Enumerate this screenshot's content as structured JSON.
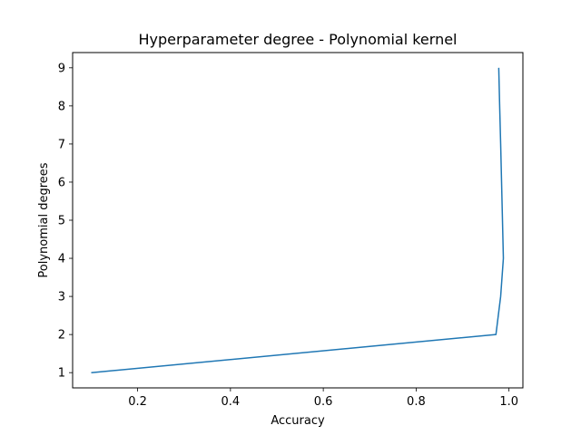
{
  "chart_data": {
    "type": "line",
    "title": "Hyperparameter degree - Polynomial kernel",
    "xlabel": "Accuracy",
    "ylabel": "Polynomial degrees",
    "xlim": [
      0.06,
      1.03
    ],
    "ylim": [
      0.6,
      9.4
    ],
    "xticks": [
      0.2,
      0.4,
      0.6,
      0.8,
      1.0
    ],
    "xtick_labels": [
      "0.2",
      "0.4",
      "0.6",
      "0.8",
      "1.0"
    ],
    "yticks": [
      1,
      2,
      3,
      4,
      5,
      6,
      7,
      8,
      9
    ],
    "ytick_labels": [
      "1",
      "2",
      "3",
      "4",
      "5",
      "6",
      "7",
      "8",
      "9"
    ],
    "grid": false,
    "series": [
      {
        "color": "#1f77b4",
        "x": [
          0.1,
          0.972,
          0.982,
          0.988,
          0.986,
          0.984,
          0.982,
          0.98,
          0.978
        ],
        "y": [
          1,
          2,
          3,
          4,
          5,
          6,
          7,
          8,
          9
        ]
      }
    ]
  }
}
